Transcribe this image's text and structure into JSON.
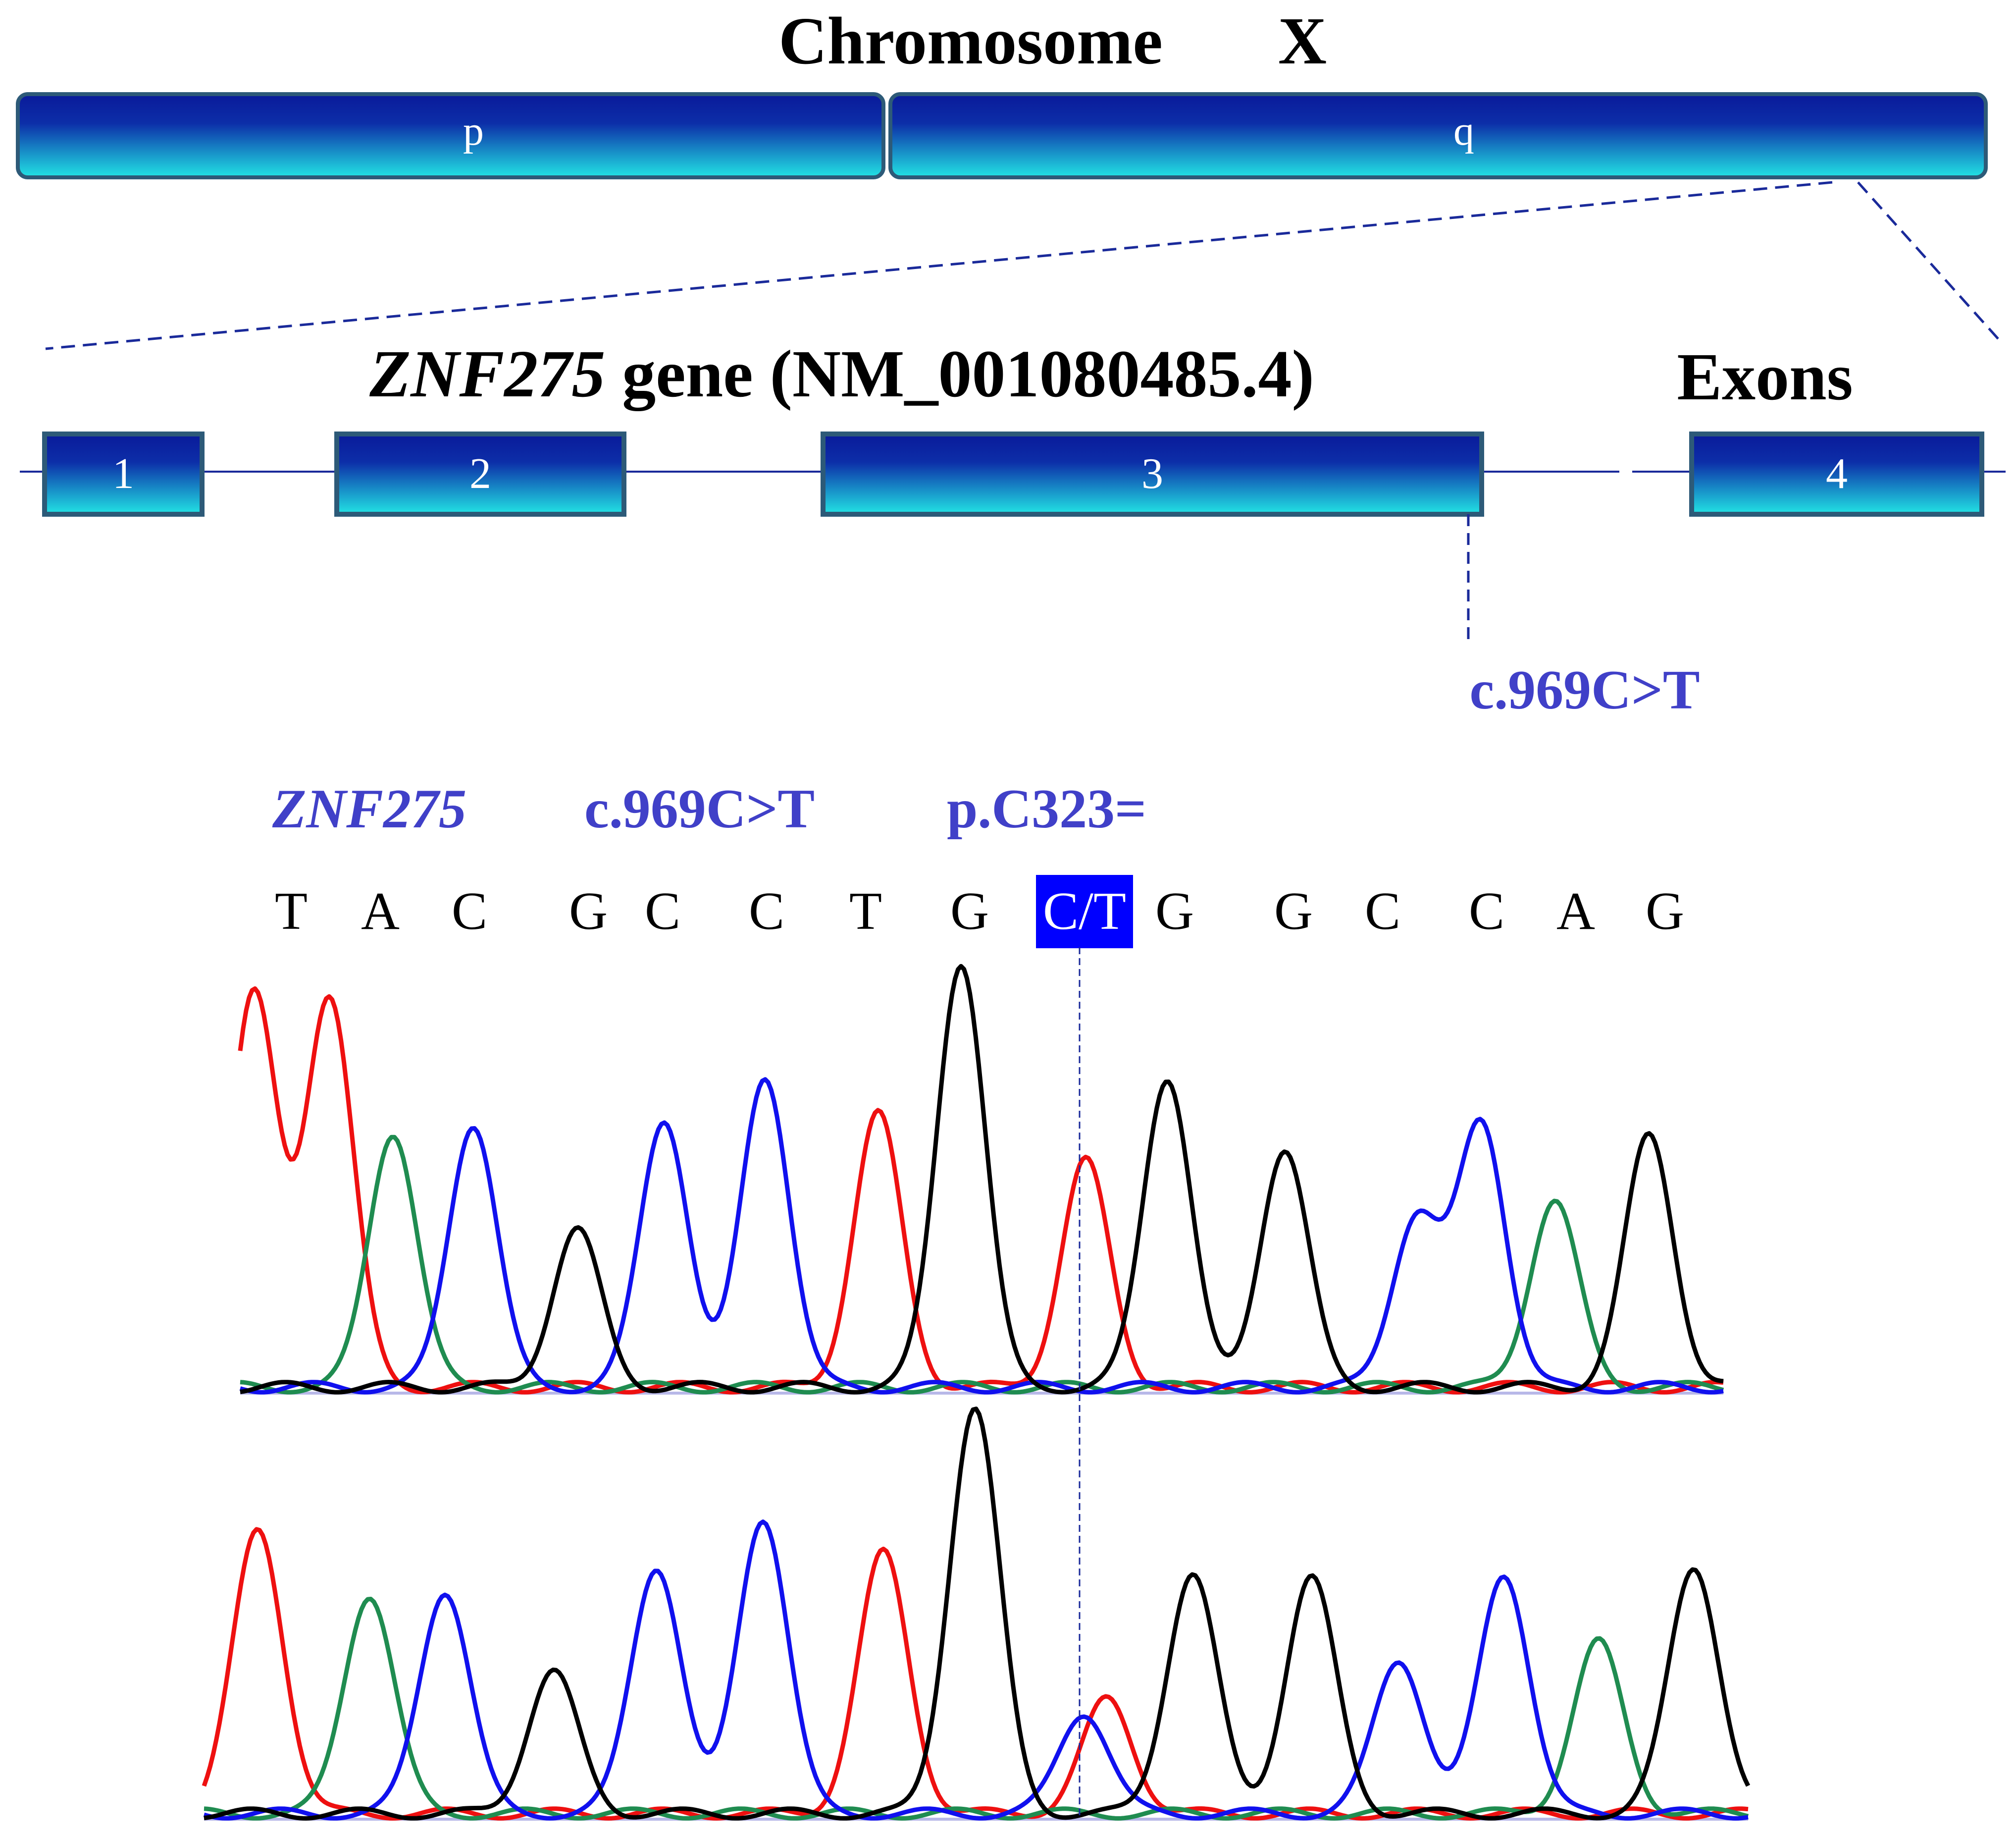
{
  "chromosome": {
    "label": "Chromosome",
    "name": "X",
    "arms": [
      {
        "id": "p",
        "label": "p"
      },
      {
        "id": "q",
        "label": "q"
      }
    ]
  },
  "gene": {
    "symbol": "ZNF275",
    "suffix": " gene (NM_001080485.4)",
    "exons_label": "Exons",
    "exons": [
      "1",
      "2",
      "3",
      "4"
    ]
  },
  "variant": {
    "position_label": "c.969C>T",
    "gene_symbol": "ZNF275",
    "cdna": "c.969C>T",
    "protein": "p.C323="
  },
  "sequence": {
    "bases": [
      "T",
      "A",
      "C",
      "G",
      "C",
      "C",
      "T",
      "G",
      "C/T",
      "G",
      "G",
      "C",
      "C",
      "A",
      "G"
    ],
    "highlight_index": 8
  },
  "colors": {
    "bar_dark": "#0a1a9a",
    "bar_light": "#1ee0e0",
    "bar_border": "#2d5a78",
    "variant_text": "#4040c8",
    "highlight": "#0000ff",
    "trace_A": "#1f8c50",
    "trace_C": "#1010ee",
    "trace_G": "#000000",
    "trace_T": "#ee1010"
  },
  "chromatograms": [
    {
      "id": "top",
      "traces": [
        {
          "base": "T",
          "peaks": [
            [
              0.06,
              0.92
            ],
            [
              0.43,
              0.64
            ],
            [
              0.57,
              0.53
            ],
            [
              0.009,
              0.92
            ]
          ]
        },
        {
          "base": "A",
          "peaks": [
            [
              0.103,
              0.6
            ],
            [
              0.886,
              0.44
            ]
          ]
        },
        {
          "base": "C",
          "peaks": [
            [
              0.157,
              0.62
            ],
            [
              0.286,
              0.63
            ],
            [
              0.354,
              0.73
            ],
            [
              0.793,
              0.4
            ],
            [
              0.837,
              0.62
            ]
          ]
        },
        {
          "base": "G",
          "peaks": [
            [
              0.227,
              0.37
            ],
            [
              0.486,
              1.0
            ],
            [
              0.625,
              0.73
            ],
            [
              0.704,
              0.56
            ],
            [
              0.95,
              0.59
            ]
          ]
        }
      ]
    },
    {
      "id": "bottom",
      "traces": [
        {
          "base": "T",
          "peaks": [
            [
              0.035,
              0.7
            ],
            [
              0.44,
              0.64
            ],
            [
              0.585,
              0.28
            ]
          ]
        },
        {
          "base": "A",
          "peaks": [
            [
              0.107,
              0.54
            ],
            [
              0.903,
              0.42
            ]
          ]
        },
        {
          "base": "C",
          "peaks": [
            [
              0.156,
              0.55
            ],
            [
              0.293,
              0.61
            ],
            [
              0.362,
              0.73
            ],
            [
              0.57,
              0.25
            ],
            [
              0.774,
              0.38
            ],
            [
              0.842,
              0.59
            ]
          ]
        },
        {
          "base": "G",
          "peaks": [
            [
              0.226,
              0.35
            ],
            [
              0.499,
              1.0
            ],
            [
              0.64,
              0.59
            ],
            [
              0.717,
              0.58
            ],
            [
              0.965,
              0.61
            ]
          ]
        }
      ]
    }
  ]
}
